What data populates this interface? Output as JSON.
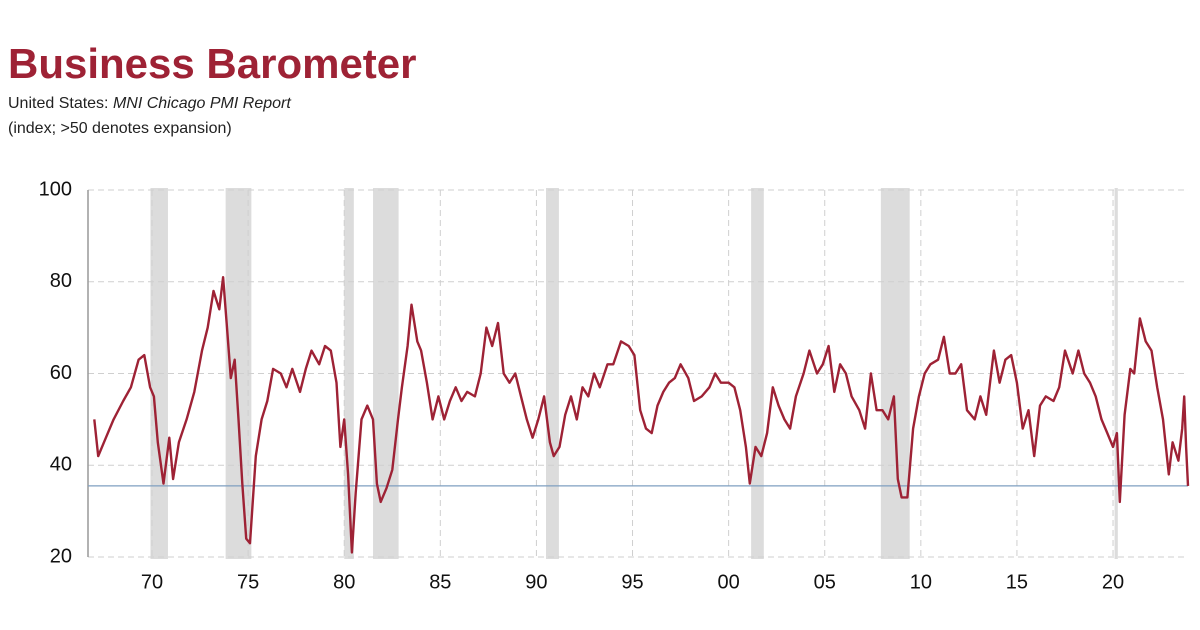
{
  "chart_data": {
    "type": "line",
    "title": "Business Barometer",
    "subtitle": {
      "region": "United States:",
      "source": "MNI Chicago PMI Report"
    },
    "note": "(index; >50 denotes expansion)",
    "color": "#9e2235",
    "grid": true,
    "xlim": [
      1966.67,
      2023.9
    ],
    "ylim": [
      20,
      100
    ],
    "xticks": [
      {
        "value": 1970,
        "label": "70"
      },
      {
        "value": 1975,
        "label": "75"
      },
      {
        "value": 1980,
        "label": "80"
      },
      {
        "value": 1985,
        "label": "85"
      },
      {
        "value": 1990,
        "label": "90"
      },
      {
        "value": 1995,
        "label": "95"
      },
      {
        "value": 2000,
        "label": "00"
      },
      {
        "value": 2005,
        "label": "05"
      },
      {
        "value": 2010,
        "label": "10"
      },
      {
        "value": 2015,
        "label": "15"
      },
      {
        "value": 2020,
        "label": "20"
      }
    ],
    "yticks": [
      20,
      40,
      60,
      80,
      100
    ],
    "reference_line": 35.5,
    "recessions": [
      [
        1969.92,
        1970.83
      ],
      [
        1973.83,
        1975.17
      ],
      [
        1980.0,
        1980.5
      ],
      [
        1981.5,
        1982.83
      ],
      [
        1990.5,
        1991.17
      ],
      [
        2001.17,
        2001.83
      ],
      [
        2007.92,
        2009.42
      ],
      [
        2020.08,
        2020.25
      ]
    ],
    "x": [
      1967.0,
      1967.2,
      1967.6,
      1968.0,
      1968.5,
      1968.9,
      1969.3,
      1969.6,
      1969.9,
      1970.1,
      1970.3,
      1970.6,
      1970.9,
      1971.1,
      1971.4,
      1971.8,
      1972.2,
      1972.6,
      1972.9,
      1973.2,
      1973.5,
      1973.7,
      1973.9,
      1974.1,
      1974.3,
      1974.5,
      1974.7,
      1974.9,
      1975.1,
      1975.4,
      1975.7,
      1976.0,
      1976.3,
      1976.7,
      1977.0,
      1977.3,
      1977.7,
      1978.0,
      1978.3,
      1978.7,
      1979.0,
      1979.3,
      1979.6,
      1979.8,
      1980.0,
      1980.2,
      1980.4,
      1980.6,
      1980.9,
      1981.2,
      1981.5,
      1981.7,
      1981.9,
      1982.2,
      1982.5,
      1982.8,
      1983.0,
      1983.3,
      1983.5,
      1983.8,
      1984.0,
      1984.3,
      1984.6,
      1984.9,
      1985.2,
      1985.5,
      1985.8,
      1986.1,
      1986.4,
      1986.8,
      1987.1,
      1987.4,
      1987.7,
      1988.0,
      1988.3,
      1988.6,
      1988.9,
      1989.2,
      1989.5,
      1989.8,
      1990.1,
      1990.4,
      1990.7,
      1990.9,
      1991.2,
      1991.5,
      1991.8,
      1992.1,
      1992.4,
      1992.7,
      1993.0,
      1993.3,
      1993.7,
      1994.0,
      1994.4,
      1994.8,
      1995.1,
      1995.4,
      1995.7,
      1996.0,
      1996.3,
      1996.6,
      1996.9,
      1997.2,
      1997.5,
      1997.9,
      1998.2,
      1998.6,
      1999.0,
      1999.3,
      1999.6,
      2000.0,
      2000.3,
      2000.6,
      2000.9,
      2001.1,
      2001.4,
      2001.7,
      2002.0,
      2002.3,
      2002.6,
      2002.9,
      2003.2,
      2003.5,
      2003.9,
      2004.2,
      2004.6,
      2004.9,
      2005.2,
      2005.5,
      2005.8,
      2006.1,
      2006.4,
      2006.8,
      2007.1,
      2007.4,
      2007.7,
      2008.0,
      2008.3,
      2008.6,
      2008.8,
      2009.0,
      2009.3,
      2009.6,
      2009.9,
      2010.2,
      2010.5,
      2010.9,
      2011.2,
      2011.5,
      2011.8,
      2012.1,
      2012.4,
      2012.8,
      2013.1,
      2013.4,
      2013.8,
      2014.1,
      2014.4,
      2014.7,
      2015.0,
      2015.3,
      2015.6,
      2015.9,
      2016.2,
      2016.5,
      2016.9,
      2017.2,
      2017.5,
      2017.9,
      2018.2,
      2018.5,
      2018.8,
      2019.1,
      2019.4,
      2019.7,
      2020.0,
      2020.2,
      2020.35,
      2020.6,
      2020.9,
      2021.1,
      2021.4,
      2021.7,
      2022.0,
      2022.3,
      2022.6,
      2022.9,
      2023.1,
      2023.4,
      2023.6,
      2023.7,
      2023.8,
      2023.9
    ],
    "values": [
      50,
      42,
      46,
      50,
      54,
      57,
      63,
      64,
      57,
      55,
      45,
      36,
      46,
      37,
      45,
      50,
      56,
      65,
      70,
      78,
      74,
      81,
      70,
      59,
      63,
      50,
      36,
      24,
      23,
      42,
      50,
      54,
      61,
      60,
      57,
      61,
      56,
      61,
      65,
      62,
      66,
      65,
      58,
      44,
      50,
      38,
      21,
      34,
      50,
      53,
      50,
      36,
      32,
      35,
      39,
      50,
      57,
      66,
      75,
      67,
      65,
      58,
      50,
      55,
      50,
      54,
      57,
      54,
      56,
      55,
      60,
      70,
      66,
      71,
      60,
      58,
      60,
      55,
      50,
      46,
      50,
      55,
      45,
      42,
      44,
      51,
      55,
      50,
      57,
      55,
      60,
      57,
      62,
      62,
      67,
      66,
      64,
      52,
      48,
      47,
      53,
      56,
      58,
      59,
      62,
      59,
      54,
      55,
      57,
      60,
      58,
      58,
      57,
      52,
      44,
      36,
      44,
      42,
      47,
      57,
      53,
      50,
      48,
      55,
      60,
      65,
      60,
      62,
      66,
      56,
      62,
      60,
      55,
      52,
      48,
      60,
      52,
      52,
      50,
      55,
      37,
      33,
      33,
      48,
      55,
      60,
      62,
      63,
      68,
      60,
      60,
      62,
      52,
      50,
      55,
      51,
      65,
      58,
      63,
      64,
      58,
      48,
      52,
      42,
      53,
      55,
      54,
      57,
      65,
      60,
      65,
      60,
      58,
      55,
      50,
      47,
      44,
      47,
      32,
      51,
      61,
      60,
      72,
      67,
      65,
      57,
      50,
      38,
      45,
      41,
      48,
      55,
      44,
      35.5
    ]
  }
}
